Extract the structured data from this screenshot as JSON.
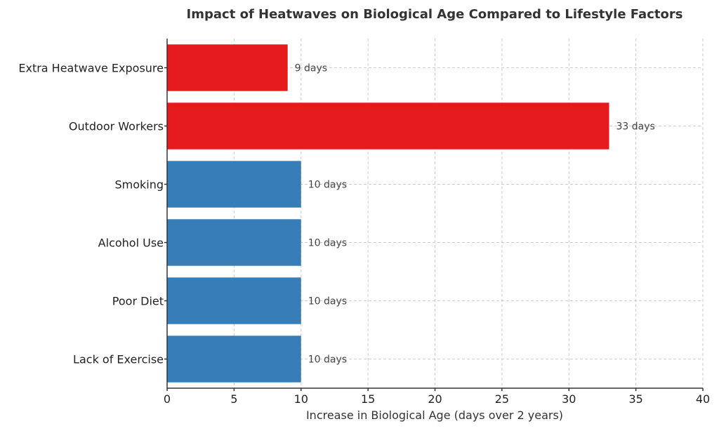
{
  "chart_data": {
    "type": "bar",
    "orientation": "horizontal",
    "title": "Impact of Heatwaves on Biological Age Compared to Lifestyle Factors",
    "xlabel": "Increase in Biological Age (days over 2 years)",
    "ylabel": "",
    "xlim": [
      0,
      40
    ],
    "xticks": [
      0,
      5,
      10,
      15,
      20,
      25,
      30,
      35,
      40
    ],
    "grid": true,
    "categories": [
      "Extra Heatwave Exposure",
      "Outdoor Workers",
      "Smoking",
      "Alcohol Use",
      "Poor Diet",
      "Lack of Exercise"
    ],
    "values": [
      9,
      33,
      10,
      10,
      10,
      10
    ],
    "data_labels": [
      "9 days",
      "33 days",
      "10 days",
      "10 days",
      "10 days",
      "10 days"
    ],
    "colors": [
      "#e41a1c",
      "#e41a1c",
      "#377eb8",
      "#377eb8",
      "#377eb8",
      "#377eb8"
    ]
  }
}
